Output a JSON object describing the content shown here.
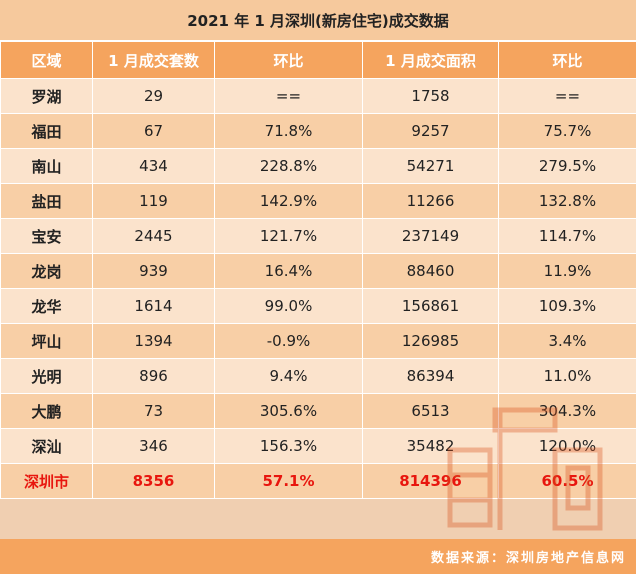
{
  "title": "2021 年 1 月深圳(新房住宅)成交数据",
  "headers": [
    "区域",
    "1 月成交套数",
    "环比",
    "1 月成交面积",
    "环比"
  ],
  "rows": [
    {
      "area": "罗湖",
      "units": "29",
      "units_mom": "==",
      "size": "1758",
      "size_mom": "=="
    },
    {
      "area": "福田",
      "units": "67",
      "units_mom": "71.8%",
      "size": "9257",
      "size_mom": "75.7%"
    },
    {
      "area": "南山",
      "units": "434",
      "units_mom": "228.8%",
      "size": "54271",
      "size_mom": "279.5%"
    },
    {
      "area": "盐田",
      "units": "119",
      "units_mom": "142.9%",
      "size": "11266",
      "size_mom": "132.8%"
    },
    {
      "area": "宝安",
      "units": "2445",
      "units_mom": "121.7%",
      "size": "237149",
      "size_mom": "114.7%"
    },
    {
      "area": "龙岗",
      "units": "939",
      "units_mom": "16.4%",
      "size": "88460",
      "size_mom": "11.9%"
    },
    {
      "area": "龙华",
      "units": "1614",
      "units_mom": "99.0%",
      "size": "156861",
      "size_mom": "109.3%"
    },
    {
      "area": "坪山",
      "units": "1394",
      "units_mom": "-0.9%",
      "size": "126985",
      "size_mom": "3.4%"
    },
    {
      "area": "光明",
      "units": "896",
      "units_mom": "9.4%",
      "size": "86394",
      "size_mom": "11.0%"
    },
    {
      "area": "大鹏",
      "units": "73",
      "units_mom": "305.6%",
      "size": "6513",
      "size_mom": "304.3%"
    },
    {
      "area": "深汕",
      "units": "346",
      "units_mom": "156.3%",
      "size": "35482",
      "size_mom": "120.0%"
    }
  ],
  "total": {
    "area": "深圳市",
    "units": "8356",
    "units_mom": "57.1%",
    "size": "814396",
    "size_mom": "60.5%"
  },
  "source": "数据来源：深圳房地产信息网",
  "watermark_icon": "logo-watermark-icon",
  "colors": {
    "header": "#f5a45e",
    "row_light": "#fbe3cc",
    "row_dark": "#f8cfa6",
    "total_text": "#e8160e"
  }
}
